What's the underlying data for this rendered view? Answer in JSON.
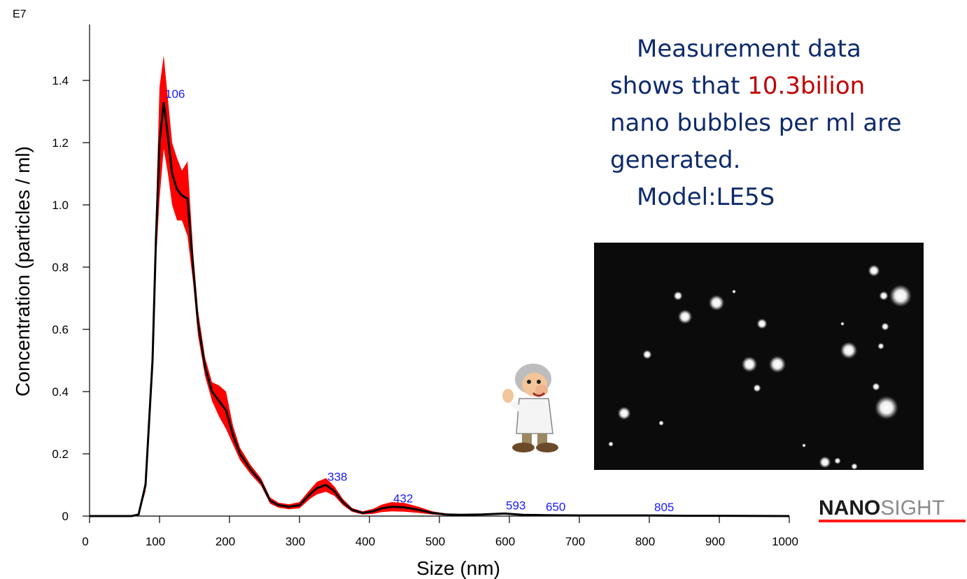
{
  "chart_data": {
    "type": "area",
    "xlabel": "Size (nm)",
    "ylabel": "Concentration (particles / ml)",
    "y_multiplier_label": "E7",
    "xlim": [
      0,
      1000
    ],
    "ylim": [
      0,
      1.55
    ],
    "x_ticks": [
      "0",
      "100",
      "200",
      "300",
      "400",
      "500",
      "600",
      "700",
      "800",
      "900",
      "1000"
    ],
    "y_ticks": [
      "0",
      "0.2",
      "0.4",
      "0.6",
      "0.8",
      "1.0",
      "1.2",
      "1.4"
    ],
    "grid": false,
    "colors": {
      "mean_line": "#000000",
      "error_band": "#ff0000",
      "peak_labels": "#1a1aff"
    },
    "series": [
      {
        "x": [
          0,
          60,
          70,
          80,
          90,
          95,
          100,
          106,
          112,
          118,
          125,
          132,
          140,
          148,
          155,
          165,
          175,
          185,
          195,
          205,
          215,
          230,
          245,
          258,
          270,
          285,
          300,
          315,
          325,
          338,
          350,
          362,
          375,
          390,
          405,
          418,
          432,
          450,
          470,
          490,
          510,
          530,
          560,
          593,
          620,
          650,
          700,
          750,
          805,
          850,
          900,
          1000
        ],
        "y": [
          0,
          0,
          0.005,
          0.1,
          0.5,
          0.9,
          1.2,
          1.33,
          1.22,
          1.1,
          1.05,
          1.03,
          1.02,
          0.8,
          0.62,
          0.48,
          0.4,
          0.37,
          0.34,
          0.26,
          0.2,
          0.15,
          0.11,
          0.05,
          0.035,
          0.03,
          0.035,
          0.07,
          0.09,
          0.1,
          0.08,
          0.045,
          0.02,
          0.01,
          0.015,
          0.025,
          0.03,
          0.028,
          0.02,
          0.01,
          0.005,
          0.004,
          0.005,
          0.008,
          0.004,
          0.003,
          0.002,
          0.002,
          0.002,
          0.001,
          0.001,
          0
        ],
        "error": [
          0,
          0,
          0.003,
          0.02,
          0.05,
          0.08,
          0.18,
          0.15,
          0.12,
          0.1,
          0.1,
          0.08,
          0.12,
          0.05,
          0.04,
          0.03,
          0.03,
          0.05,
          0.06,
          0.03,
          0.02,
          0.015,
          0.012,
          0.01,
          0.008,
          0.008,
          0.01,
          0.015,
          0.02,
          0.022,
          0.015,
          0.01,
          0.006,
          0.005,
          0.008,
          0.012,
          0.015,
          0.014,
          0.01,
          0.005,
          0.003,
          0.002,
          0.002,
          0.003,
          0.002,
          0.001,
          0.001,
          0.001,
          0.001,
          0.001,
          0.001,
          0
        ]
      }
    ],
    "peaks": [
      {
        "label": "106",
        "x": 106,
        "y": 1.33
      },
      {
        "label": "338",
        "x": 338,
        "y": 0.1
      },
      {
        "label": "432",
        "x": 432,
        "y": 0.03
      },
      {
        "label": "593",
        "x": 593,
        "y": 0.008
      },
      {
        "label": "650",
        "x": 650,
        "y": 0.003
      },
      {
        "label": "805",
        "x": 805,
        "y": 0.002
      }
    ]
  },
  "note": {
    "line1": "Measurement data",
    "line2_before": "shows that ",
    "line2_highlight": "10.3bilion",
    "line3": "nano bubbles per ml are",
    "line4": "generated.",
    "line5": "Model:LE5S",
    "highlight_color": "#c00000",
    "text_color": "#0d2a6b"
  },
  "brand": {
    "part1": "NANO",
    "part2": "SIGHT"
  },
  "images": {
    "micrograph": "microscope-particles-image",
    "mascot": "scientist-mascot-illustration"
  }
}
